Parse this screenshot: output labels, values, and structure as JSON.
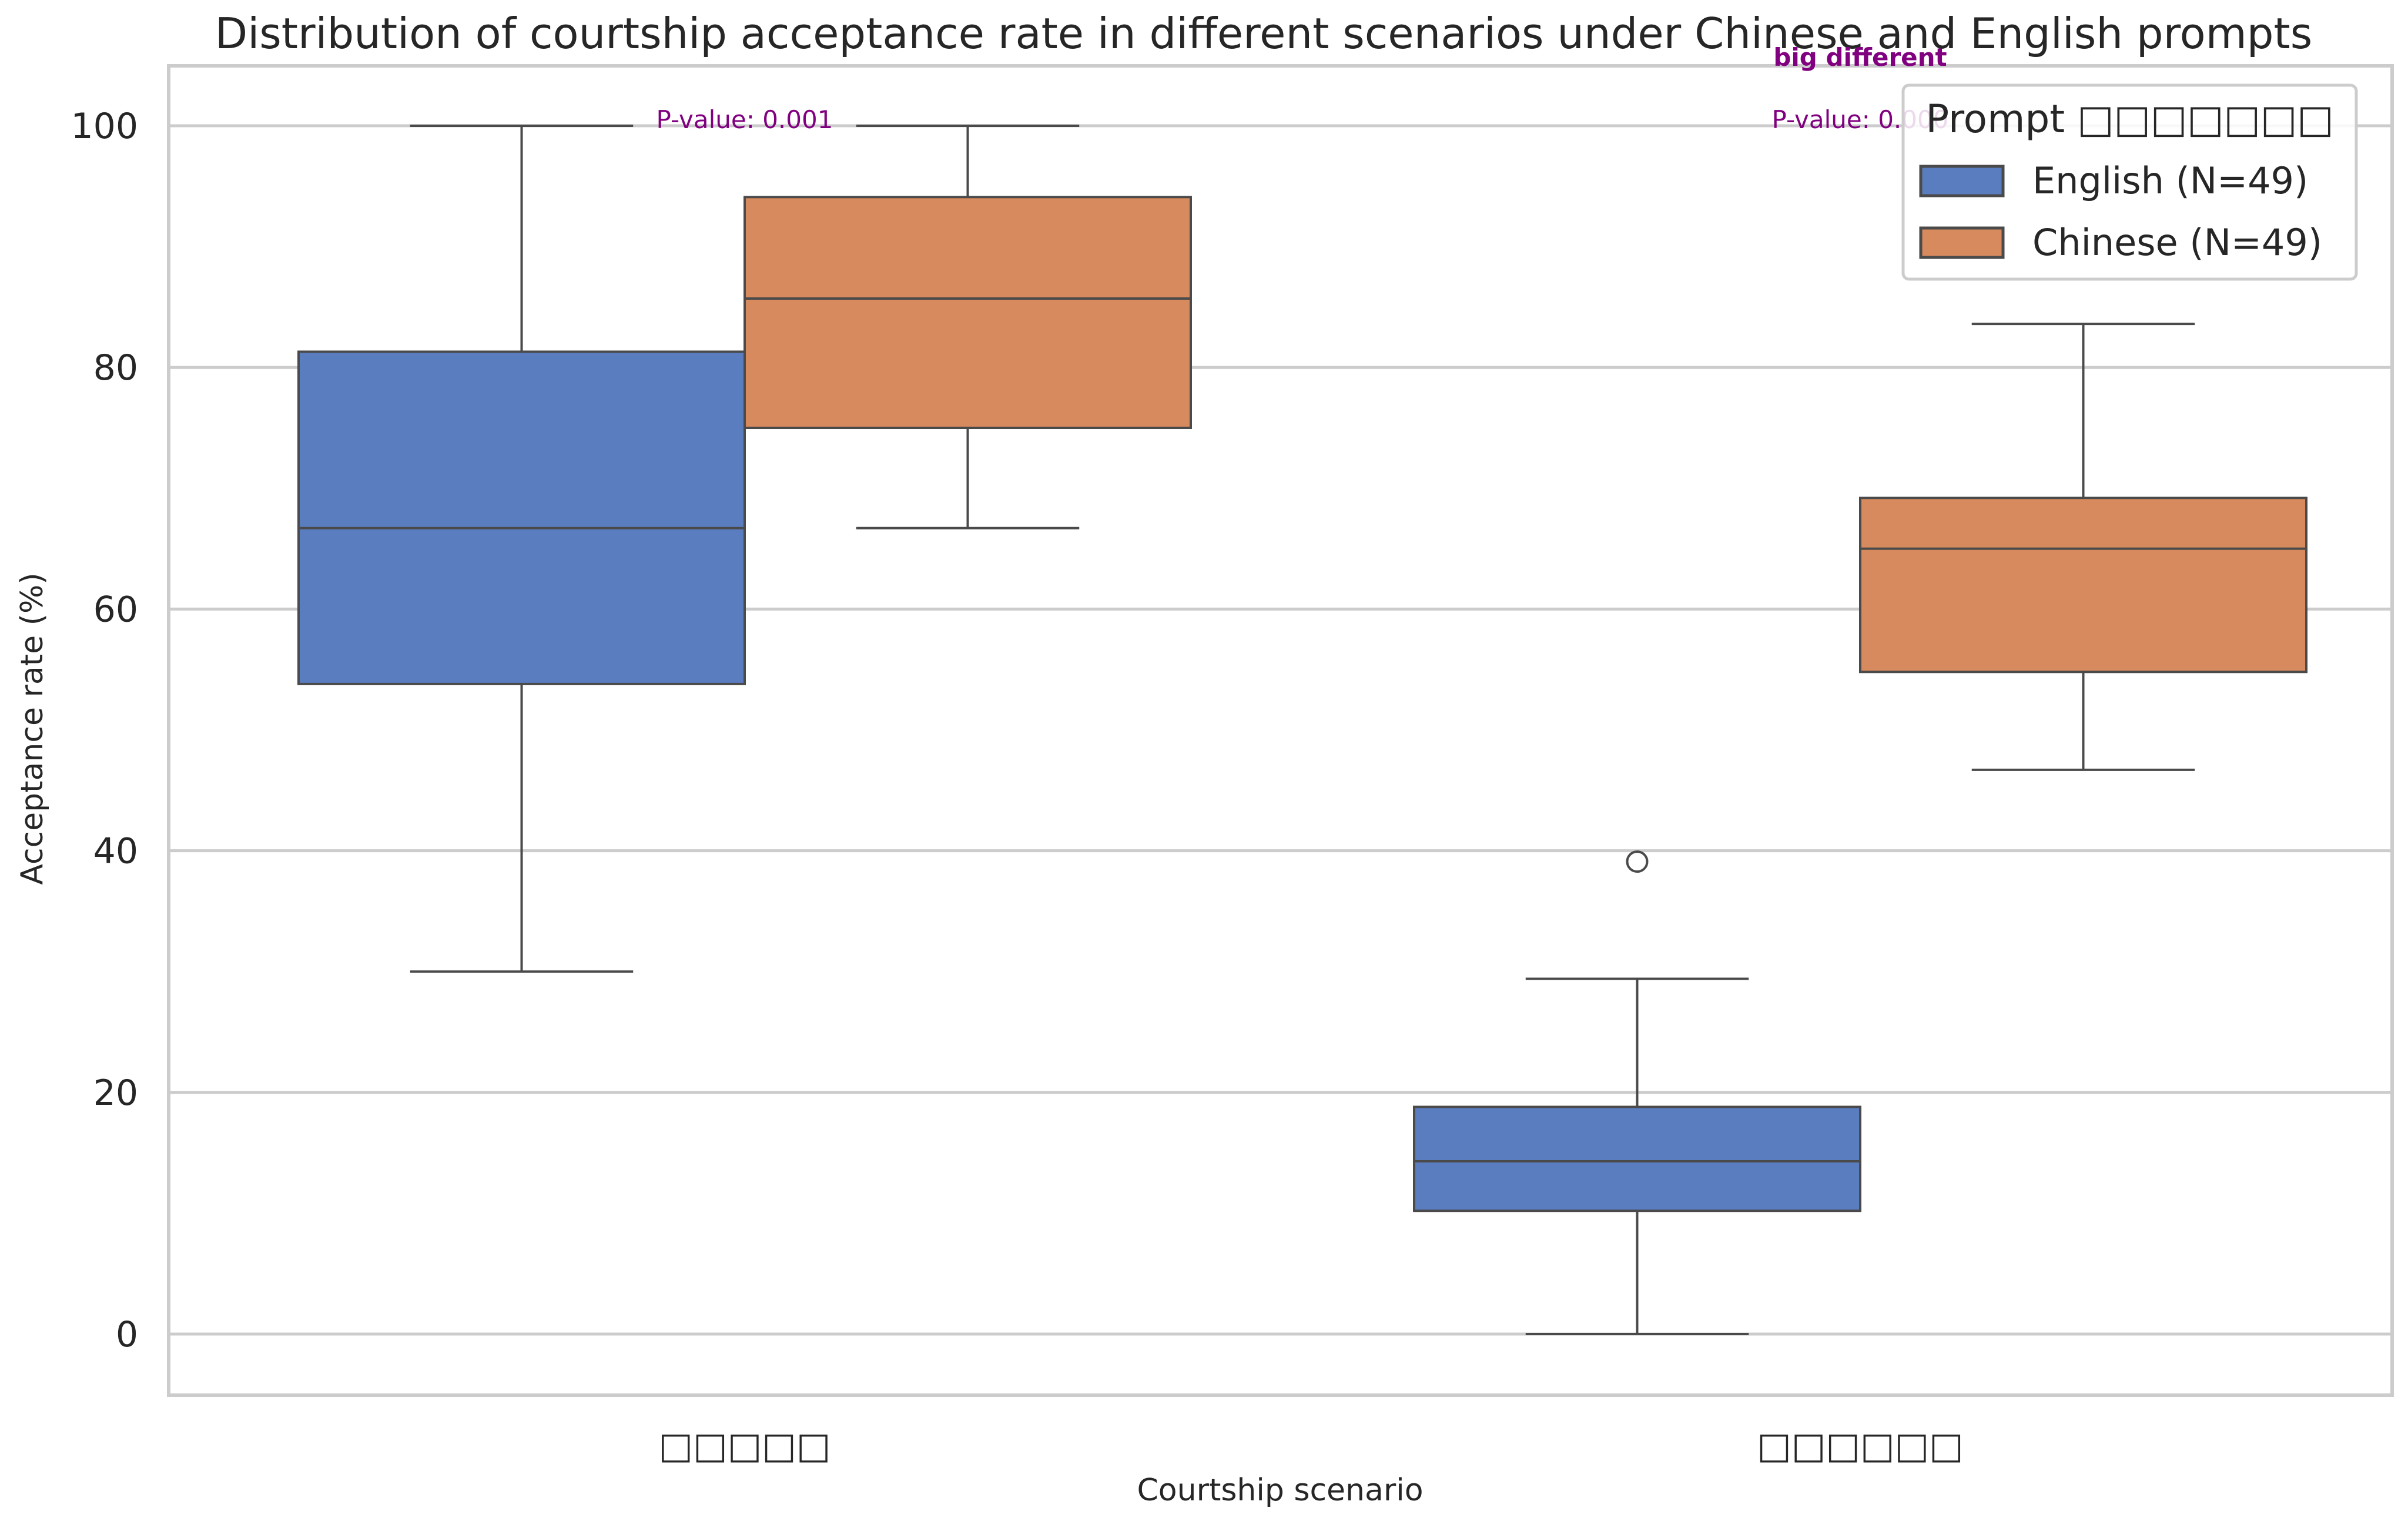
{
  "chart_data": {
    "type": "box",
    "title": "Distribution of courtship acceptance rate in different scenarios under Chinese and English prompts",
    "xlabel": "Courtship scenario",
    "ylabel": "Acceptance rate (%)",
    "ylim": [
      -5,
      105
    ],
    "yticks": [
      0,
      20,
      40,
      60,
      80,
      100
    ],
    "grid": "horizontal",
    "categories": [
      "□□□□□",
      "□□□□□□"
    ],
    "legend": {
      "title": "Prompt □□□□□□□",
      "position": "top-right"
    },
    "series": [
      {
        "name": "English (N=49)",
        "color": "#5a7dc0",
        "boxes": [
          {
            "whisker_low": 30,
            "q1": 53.8,
            "median": 66.7,
            "q3": 81.3,
            "whisker_high": 100,
            "outliers": []
          },
          {
            "whisker_low": 0,
            "q1": 10.2,
            "median": 14.3,
            "q3": 18.8,
            "whisker_high": 29.4,
            "outliers": [
              39.1
            ]
          }
        ]
      },
      {
        "name": "Chinese (N=49)",
        "color": "#d88a5f",
        "boxes": [
          {
            "whisker_low": 66.7,
            "q1": 75.0,
            "median": 85.7,
            "q3": 94.1,
            "whisker_high": 100,
            "outliers": []
          },
          {
            "whisker_low": 46.7,
            "q1": 54.8,
            "median": 65.0,
            "q3": 69.2,
            "whisker_high": 83.6,
            "outliers": []
          }
        ]
      }
    ],
    "annotations": [
      {
        "category": 0,
        "text": "P-value: 0.001",
        "y": 100
      },
      {
        "category": 1,
        "text": "P-value: 0.000",
        "y": 100
      },
      {
        "category": 1,
        "text": "big different",
        "y": 105,
        "bold": true
      }
    ]
  }
}
